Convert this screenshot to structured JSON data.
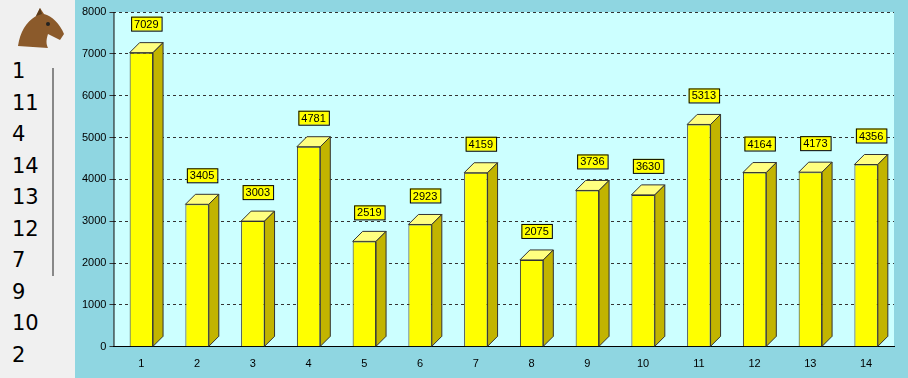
{
  "chart_data": {
    "type": "bar",
    "categories": [
      "1",
      "2",
      "3",
      "4",
      "5",
      "6",
      "7",
      "8",
      "9",
      "10",
      "11",
      "12",
      "13",
      "14"
    ],
    "values": [
      7029,
      3405,
      3003,
      4781,
      2519,
      2923,
      4159,
      2075,
      3736,
      3630,
      5313,
      4164,
      4173,
      4356
    ],
    "color": "#ffff00",
    "ylim": [
      0,
      8000
    ],
    "yticks": [
      0,
      1000,
      2000,
      3000,
      4000,
      5000,
      6000,
      7000,
      8000
    ],
    "grid": true,
    "data_labels": true
  },
  "sidebar": {
    "items": [
      "1",
      "11",
      "4",
      "14",
      "13",
      "12",
      "7",
      "9",
      "10",
      "2"
    ]
  }
}
